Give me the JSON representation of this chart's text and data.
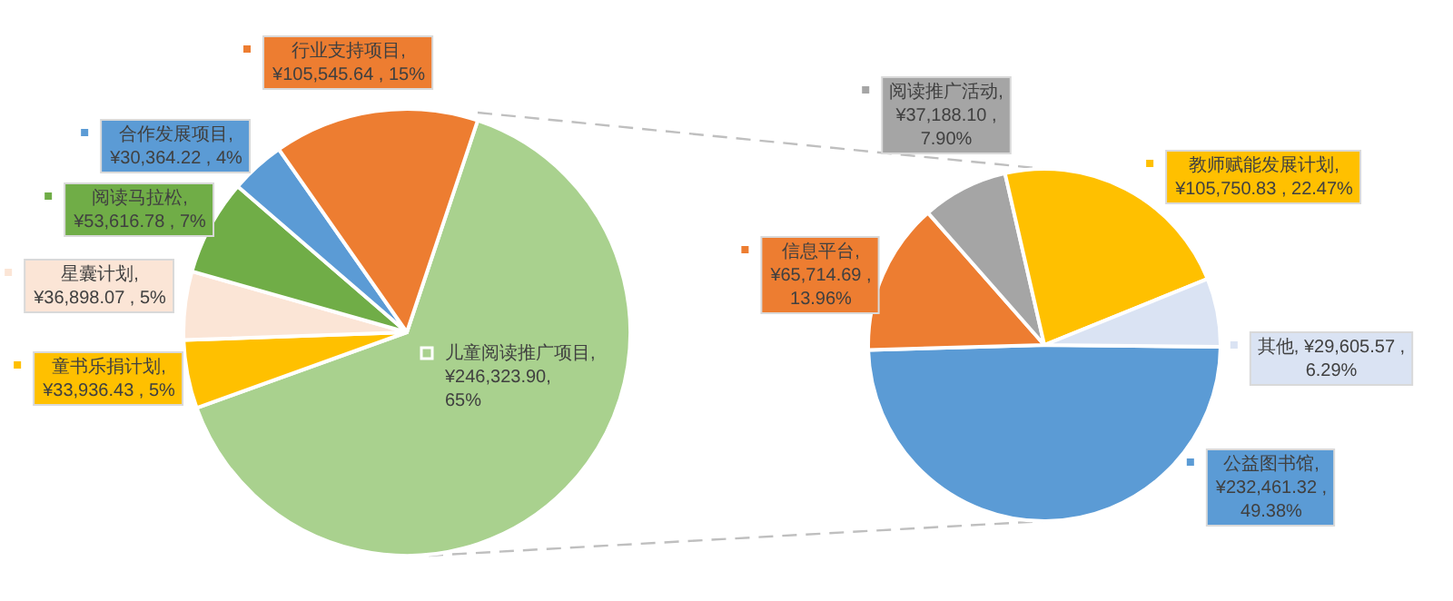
{
  "chart_data": [
    {
      "type": "pie",
      "legend": "left",
      "categories": [
        "儿童阅读推广项目",
        "童书乐捐计划",
        "星囊计划",
        "阅读马拉松",
        "合作发展项目",
        "行业支持项目"
      ],
      "values": [
        65,
        5,
        5,
        7,
        4,
        15
      ],
      "colors": [
        "#a9d18e",
        "#ffc000",
        "#fbe5d6",
        "#70ad47",
        "#5b9bd5",
        "#ed7d31"
      ],
      "value_labels": [
        ",\n¥246,323.90,\n65%",
        ",\n¥33,936.43 , 5%",
        ",\n¥36,898.07 , 5%",
        ",\n¥53,616.78 , 7%",
        ",\n¥30,364.22 , 4%",
        ",\n¥105,545.64 , 15%"
      ]
    },
    {
      "type": "pie",
      "legend": "right",
      "categories": [
        "公益图书馆",
        "信息平台",
        "阅读推广活动",
        "教师赋能发展计划",
        "其他"
      ],
      "values": [
        232461.32,
        65714.69,
        37188.1,
        105750.83,
        29605.57
      ],
      "colors": [
        "#5b9bd5",
        "#ed7d31",
        "#a5a5a5",
        "#ffc000",
        "#dae3f3"
      ],
      "value_labels": [
        ",\n¥232,461.32 ,\n49.38%",
        ",\n¥65,714.69 ,\n13.96%",
        ",\n¥37,188.10 ,\n7.90%",
        ",\n¥105,750.83 , 22.47%",
        ", ¥29,605.57 ,\n6.29%"
      ]
    }
  ]
}
